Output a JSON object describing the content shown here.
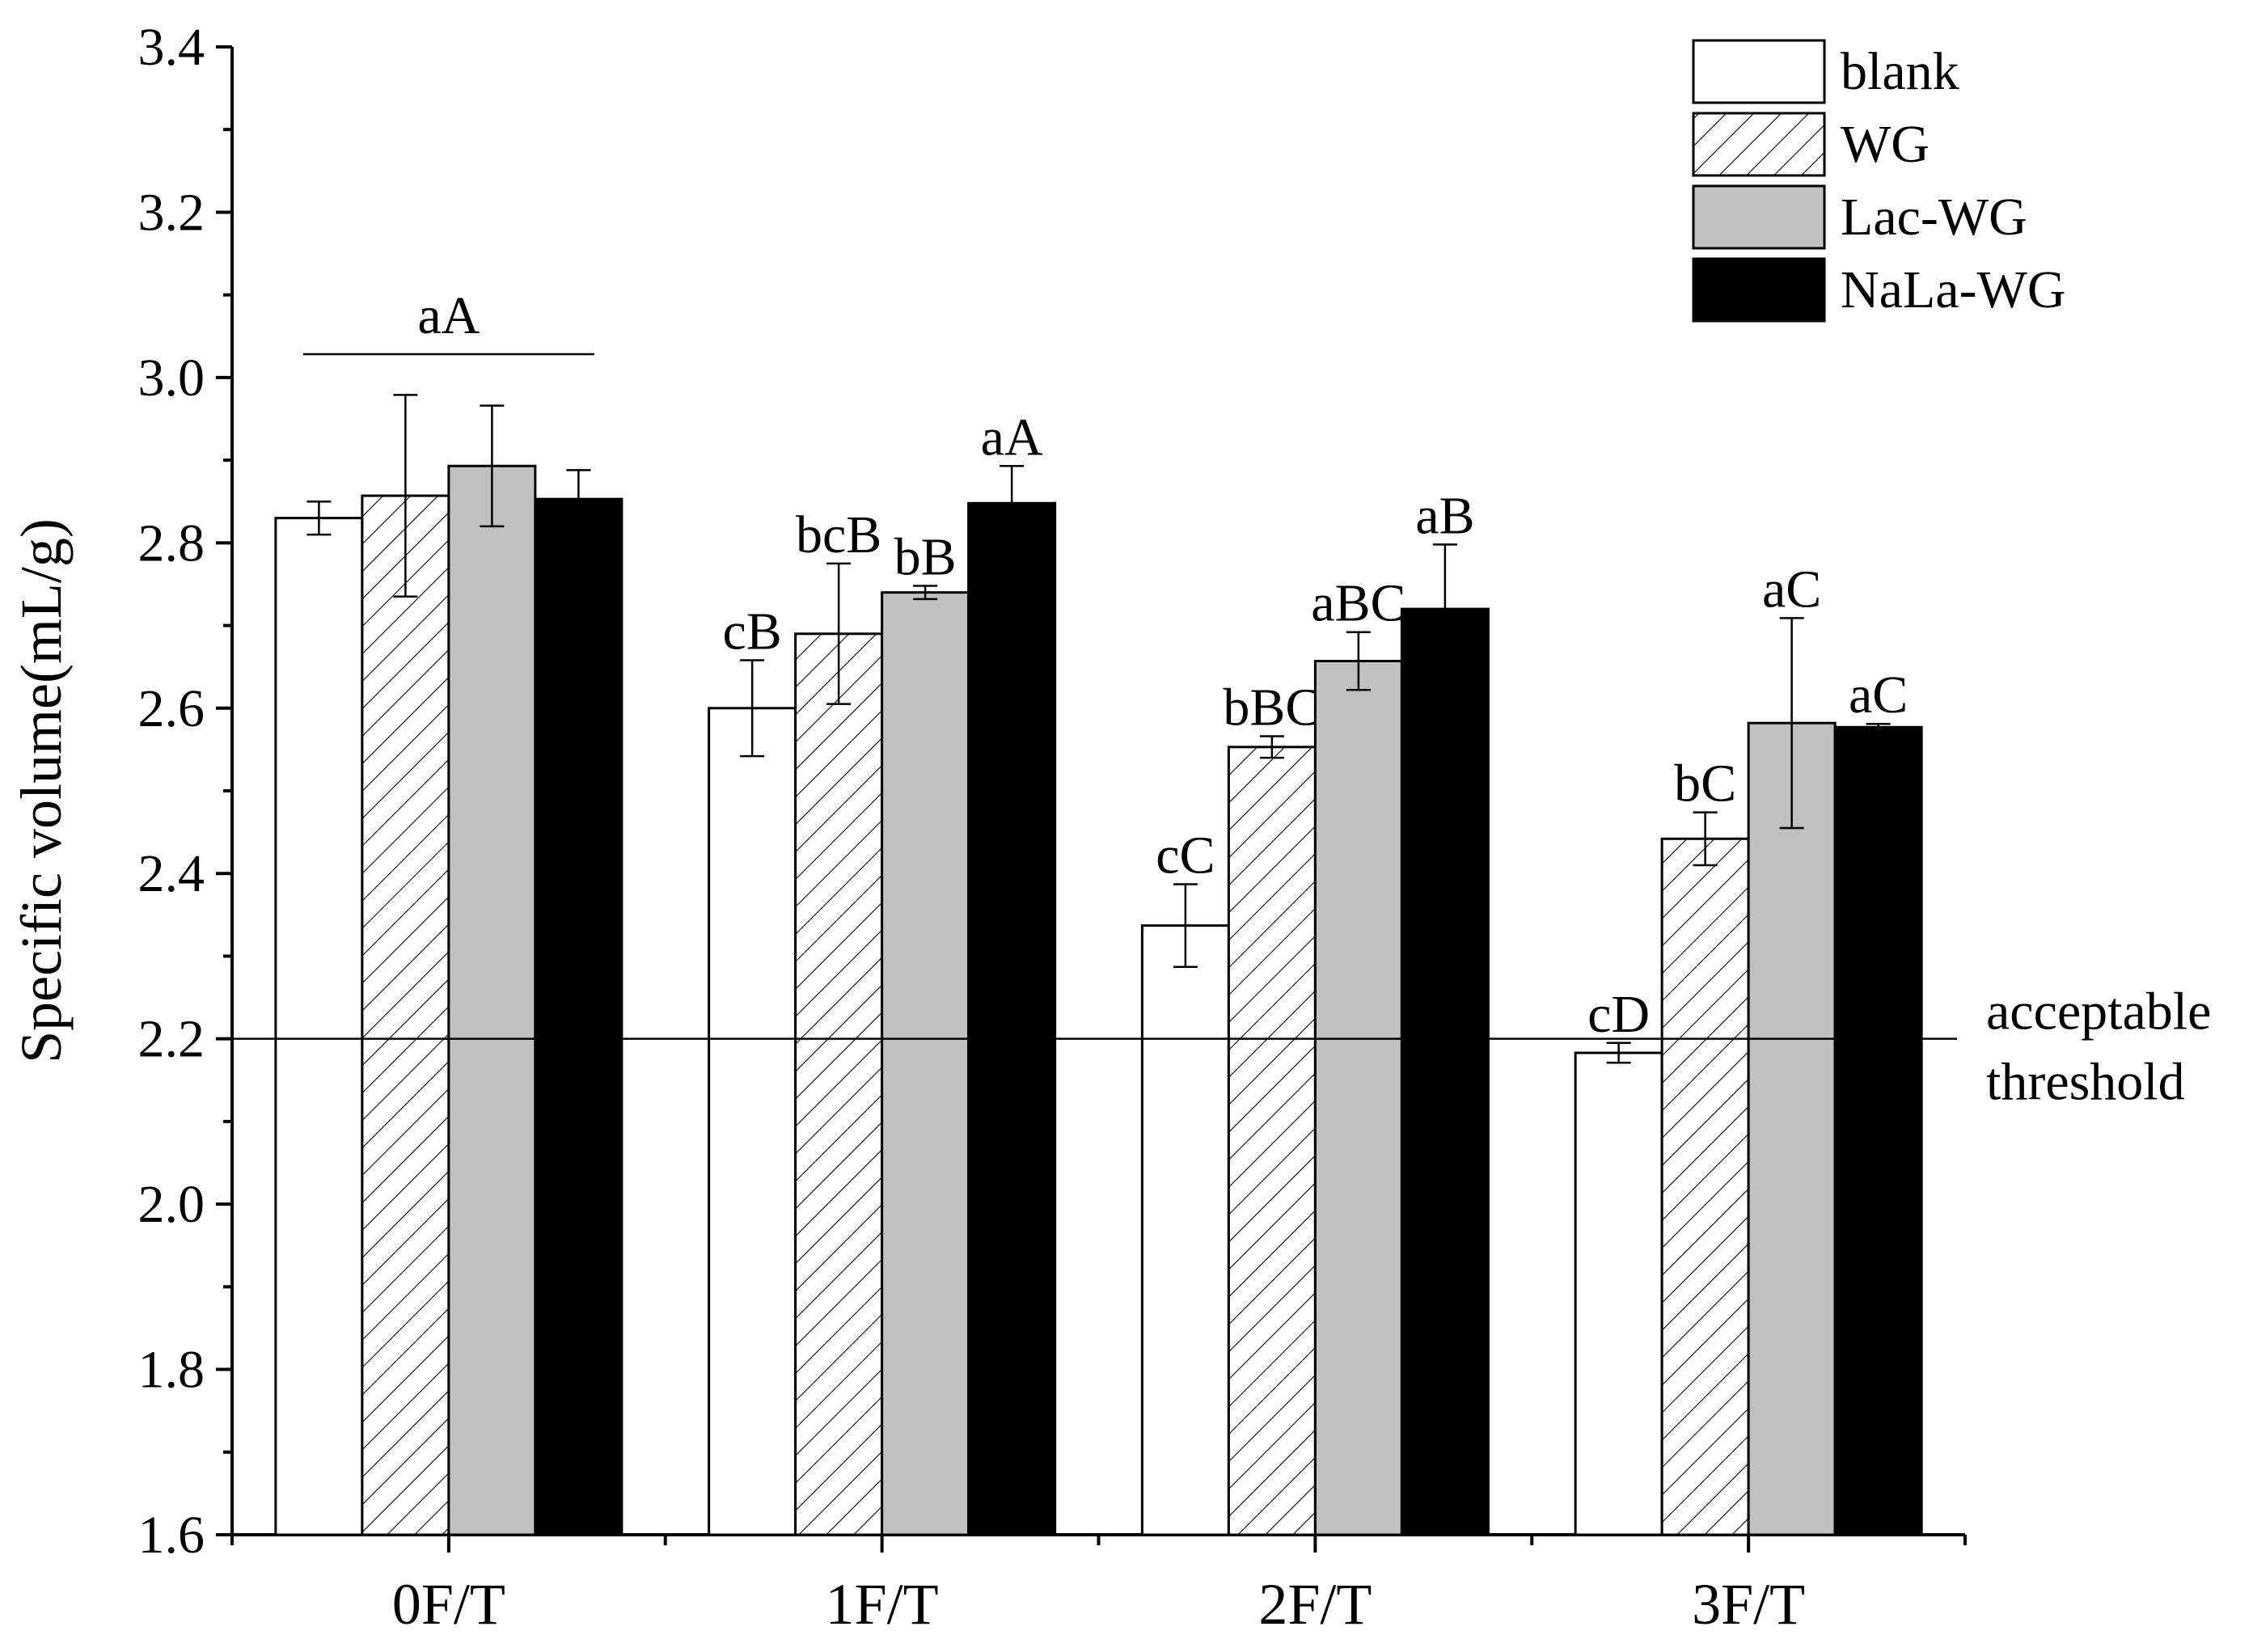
{
  "chart_data": {
    "type": "bar",
    "ylabel": "Specific volume(mL/g)",
    "xlabel": "",
    "ylim": [
      1.6,
      3.4
    ],
    "yticks": [
      "1.6",
      "1.8",
      "2.0",
      "2.2",
      "2.4",
      "2.6",
      "2.8",
      "3.0",
      "3.2",
      "3.4"
    ],
    "categories": [
      "0F/T",
      "1F/T",
      "2F/T",
      "3F/T"
    ],
    "series": [
      {
        "name": "blank",
        "pattern": "white",
        "values": [
          2.83,
          2.6,
          2.337,
          2.183
        ],
        "errors": [
          0.02,
          0.058,
          0.05,
          0.012
        ]
      },
      {
        "name": "WG",
        "pattern": "hatched",
        "values": [
          2.857,
          2.69,
          2.553,
          2.442
        ],
        "errors": [
          0.122,
          0.085,
          0.013,
          0.032
        ]
      },
      {
        "name": "Lac-WG",
        "pattern": "gray",
        "values": [
          2.893,
          2.74,
          2.657,
          2.582
        ],
        "errors": [
          0.073,
          0.008,
          0.035,
          0.127
        ]
      },
      {
        "name": "NaLa-WG",
        "pattern": "black",
        "values": [
          2.853,
          2.848,
          2.72,
          2.577
        ],
        "errors": [
          0.035,
          0.045,
          0.078,
          0.004
        ]
      }
    ],
    "significance_labels": [
      [
        "",
        "cB",
        "cC",
        "cD"
      ],
      [
        "",
        "bcB",
        "bBC",
        "bC"
      ],
      [
        "",
        "bB",
        "aBC",
        "aC"
      ],
      [
        "",
        "aA",
        "aB",
        "aC"
      ]
    ],
    "group_label": {
      "text": "aA",
      "category": "0F/T"
    },
    "threshold": {
      "value": 2.2,
      "label_line1": "acceptable",
      "label_line2": "threshold"
    },
    "legend_position": "top-right",
    "colors": {
      "white": "#ffffff",
      "gray": "#c0c0c0",
      "black": "#000000",
      "axis": "#000000"
    }
  }
}
